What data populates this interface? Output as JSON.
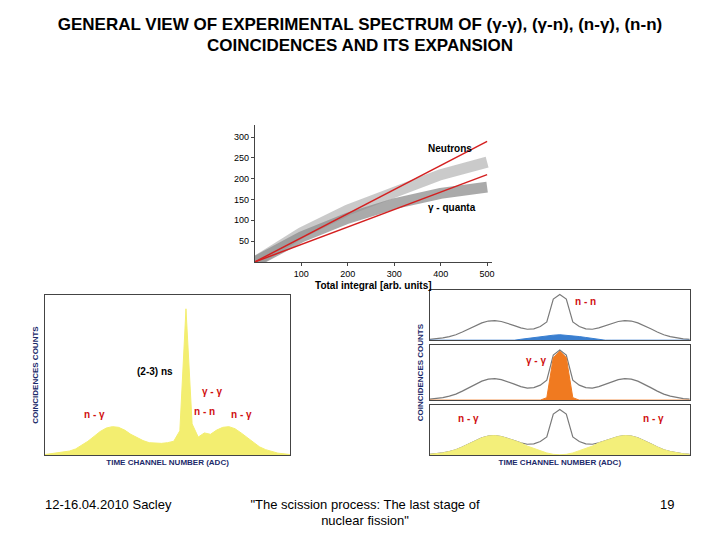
{
  "slide": {
    "title": "GENERAL VIEW OF EXPERIMENTAL SPECTRUM OF (γ-γ), (γ-n), (n-γ), (n-n) COINCIDENCES AND ITS EXPANSION",
    "footer_left": "12-16.04.2010  Sacley",
    "footer_center": "\"The scission process: The last stage of nuclear fission\"",
    "footer_page": "19"
  },
  "chart_data": [
    {
      "type": "line",
      "xlabel": "Total integral [arb. units]",
      "xlim": [
        0,
        510
      ],
      "ylim": [
        0,
        330
      ],
      "xticks": [
        100,
        200,
        300,
        400,
        500
      ],
      "yticks": [
        50,
        100,
        150,
        200,
        250,
        300
      ],
      "grid": false,
      "series": [
        {
          "x": [
            0,
            100,
            200,
            300,
            400,
            500
          ],
          "values": [
            0,
            70,
            125,
            170,
            210,
            240
          ],
          "color": "#b8b8b8",
          "line_style": "band"
        },
        {
          "x": [
            0,
            100,
            200,
            300,
            400,
            500
          ],
          "values": [
            0,
            60,
            105,
            140,
            165,
            180
          ],
          "color": "#8e8e8e",
          "line_style": "band"
        },
        {
          "x": [
            0,
            500
          ],
          "values": [
            0,
            290
          ],
          "color": "#d42020",
          "line_style": "solid"
        },
        {
          "x": [
            0,
            500
          ],
          "values": [
            0,
            210
          ],
          "color": "#d42020",
          "line_style": "solid"
        }
      ],
      "annotations": [
        {
          "text": "Neutrons",
          "x": 420,
          "y": 272,
          "color": "#000000"
        },
        {
          "text": "γ - quanta",
          "x": 425,
          "y": 132,
          "color": "#000000"
        }
      ]
    },
    {
      "type": "area",
      "xlabel": "TIME CHANNEL NUMBER (ADC)",
      "ylabel": "COINCIDENCES COUNTS",
      "tick_labels": false,
      "grid": false,
      "xlim": [
        0,
        1000
      ],
      "ylim": [
        0,
        230
      ],
      "x": [
        0,
        25,
        50,
        75,
        100,
        125,
        150,
        175,
        200,
        225,
        250,
        275,
        300,
        325,
        350,
        375,
        400,
        425,
        450,
        475,
        500,
        525,
        550,
        575,
        600,
        625,
        650,
        675,
        700,
        725,
        750,
        775,
        800,
        825,
        850,
        875,
        900,
        925,
        950,
        975,
        1000
      ],
      "series": [
        {
          "values": [
            1,
            2,
            3,
            4,
            6,
            9,
            14,
            20,
            27,
            34,
            39,
            41,
            40,
            36,
            30,
            25,
            21,
            18,
            17,
            17,
            18,
            20,
            35,
            210,
            45,
            26,
            32,
            30,
            36,
            40,
            41,
            38,
            32,
            25,
            18,
            12,
            8,
            5,
            3,
            2,
            1
          ],
          "color": "#f3ee70"
        }
      ],
      "annotations": [
        {
          "text": "(2-3) ns",
          "x": 450,
          "y": 120,
          "color": "#000000"
        },
        {
          "text": "γ - γ",
          "x": 680,
          "y": 92,
          "color": "#d01010"
        },
        {
          "text": "n - γ",
          "x": 200,
          "y": 58,
          "color": "#d01010"
        },
        {
          "text": "n - n",
          "x": 650,
          "y": 62,
          "color": "#d01010"
        },
        {
          "text": "n - γ",
          "x": 800,
          "y": 58,
          "color": "#d01010"
        }
      ]
    },
    {
      "type": "area",
      "tick_labels": false,
      "grid": false,
      "xlim": [
        0,
        1000
      ],
      "ylim": [
        0,
        110
      ],
      "x": [
        0,
        25,
        50,
        75,
        100,
        125,
        150,
        175,
        200,
        225,
        250,
        275,
        300,
        325,
        350,
        375,
        400,
        425,
        450,
        475,
        500,
        525,
        550,
        575,
        600,
        625,
        650,
        675,
        700,
        725,
        750,
        775,
        800,
        825,
        850,
        875,
        900,
        925,
        950,
        975,
        1000
      ],
      "series": [
        {
          "type": "line",
          "values": [
            2,
            3,
            5,
            8,
            12,
            18,
            25,
            32,
            38,
            42,
            43,
            41,
            37,
            32,
            27,
            24,
            25,
            30,
            40,
            90,
            100,
            90,
            40,
            30,
            25,
            24,
            27,
            32,
            37,
            41,
            43,
            42,
            38,
            32,
            25,
            18,
            12,
            8,
            5,
            3,
            2
          ],
          "color": "#7a7a7a"
        },
        {
          "type": "area",
          "values": [
            0,
            0,
            0,
            0,
            0,
            0,
            0,
            0,
            0,
            0,
            0,
            0,
            0,
            0,
            2,
            4,
            6,
            8,
            10,
            11,
            12,
            11,
            10,
            8,
            6,
            4,
            2,
            0,
            0,
            0,
            0,
            0,
            0,
            0,
            0,
            0,
            0,
            0,
            0,
            0,
            0
          ],
          "color": "#3a7fd0"
        }
      ],
      "annotations": [
        {
          "text": "n - n",
          "x": 600,
          "y": 85,
          "color": "#d01010"
        }
      ]
    },
    {
      "type": "area",
      "ylabel": "COINCIDENCES COUNTS",
      "tick_labels": false,
      "grid": false,
      "xlim": [
        0,
        1000
      ],
      "ylim": [
        0,
        110
      ],
      "x": [
        0,
        25,
        50,
        75,
        100,
        125,
        150,
        175,
        200,
        225,
        250,
        275,
        300,
        325,
        350,
        375,
        400,
        425,
        450,
        475,
        500,
        525,
        550,
        575,
        600,
        625,
        650,
        675,
        700,
        725,
        750,
        775,
        800,
        825,
        850,
        875,
        900,
        925,
        950,
        975,
        1000
      ],
      "series": [
        {
          "type": "line",
          "values": [
            2,
            3,
            5,
            8,
            12,
            18,
            25,
            32,
            38,
            42,
            43,
            41,
            37,
            32,
            27,
            24,
            25,
            30,
            40,
            90,
            100,
            90,
            40,
            30,
            25,
            24,
            27,
            32,
            37,
            41,
            43,
            42,
            38,
            32,
            25,
            18,
            12,
            8,
            5,
            3,
            2
          ],
          "color": "#7a7a7a"
        },
        {
          "type": "area",
          "values": [
            0,
            0,
            0,
            0,
            0,
            0,
            0,
            0,
            0,
            0,
            0,
            0,
            0,
            0,
            0,
            0,
            0,
            0,
            5,
            85,
            98,
            85,
            5,
            0,
            0,
            0,
            0,
            0,
            0,
            0,
            0,
            0,
            0,
            0,
            0,
            0,
            0,
            0,
            0,
            0,
            0
          ],
          "color": "#f07a20"
        }
      ],
      "annotations": [
        {
          "text": "γ - γ",
          "x": 410,
          "y": 80,
          "color": "#d01010"
        }
      ]
    },
    {
      "type": "area",
      "xlabel": "TIME CHANNEL NUMBER (ADC)",
      "tick_labels": false,
      "grid": false,
      "xlim": [
        0,
        1000
      ],
      "ylim": [
        0,
        110
      ],
      "x": [
        0,
        25,
        50,
        75,
        100,
        125,
        150,
        175,
        200,
        225,
        250,
        275,
        300,
        325,
        350,
        375,
        400,
        425,
        450,
        475,
        500,
        525,
        550,
        575,
        600,
        625,
        650,
        675,
        700,
        725,
        750,
        775,
        800,
        825,
        850,
        875,
        900,
        925,
        950,
        975,
        1000
      ],
      "series": [
        {
          "type": "line",
          "values": [
            2,
            3,
            5,
            8,
            12,
            18,
            25,
            32,
            38,
            42,
            43,
            41,
            37,
            32,
            27,
            24,
            25,
            30,
            40,
            90,
            100,
            90,
            40,
            30,
            25,
            24,
            27,
            32,
            37,
            41,
            43,
            42,
            38,
            32,
            25,
            18,
            12,
            8,
            5,
            3,
            2
          ],
          "color": "#7a7a7a"
        },
        {
          "type": "area",
          "values": [
            2,
            3,
            5,
            8,
            12,
            18,
            25,
            32,
            38,
            42,
            43,
            41,
            37,
            32,
            27,
            20,
            15,
            10,
            5,
            2,
            1,
            2,
            5,
            10,
            15,
            20,
            27,
            32,
            37,
            41,
            43,
            42,
            38,
            32,
            25,
            18,
            12,
            8,
            5,
            3,
            2
          ],
          "color": "#f3ef7a"
        }
      ],
      "annotations": [
        {
          "text": "n - γ",
          "x": 150,
          "y": 80,
          "color": "#d01010"
        },
        {
          "text": "n - γ",
          "x": 860,
          "y": 80,
          "color": "#d01010"
        }
      ]
    }
  ]
}
